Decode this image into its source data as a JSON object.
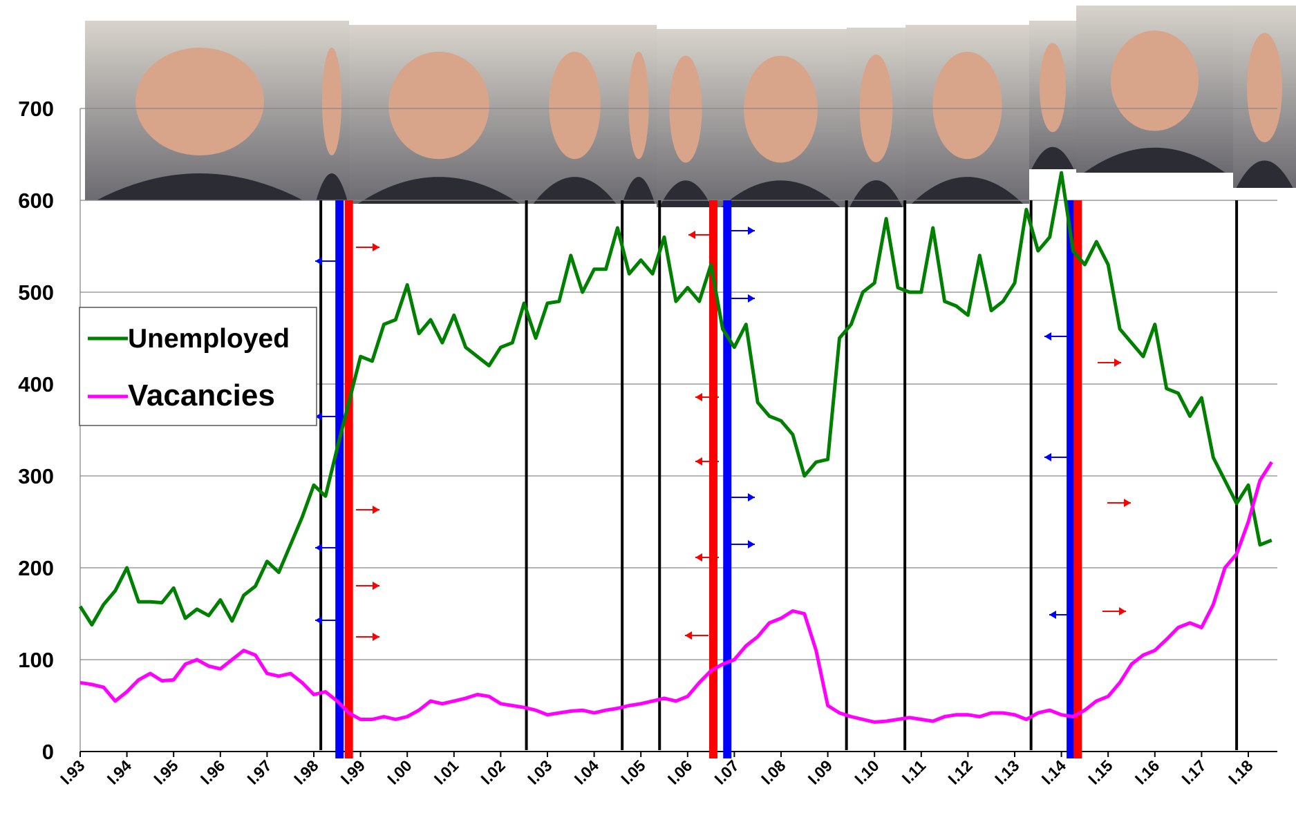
{
  "chart_data": {
    "type": "line",
    "categories": [
      "I.93",
      null,
      null,
      null,
      "I.94",
      null,
      null,
      null,
      "I.95",
      null,
      null,
      null,
      "I.96",
      null,
      null,
      null,
      "I.97",
      null,
      null,
      null,
      "I.98",
      null,
      null,
      null,
      "I.99",
      null,
      null,
      null,
      "I.00",
      null,
      null,
      null,
      "I.01",
      null,
      null,
      null,
      "I.02",
      null,
      null,
      null,
      "I.03",
      null,
      null,
      null,
      "I.04",
      null,
      null,
      null,
      "I.05",
      null,
      null,
      null,
      "I.06",
      null,
      null,
      null,
      "I.07",
      null,
      null,
      null,
      "I.08",
      null,
      null,
      null,
      "I.09",
      null,
      null,
      null,
      "I.10",
      null,
      null,
      null,
      "I.11",
      null,
      null,
      null,
      "I.12",
      null,
      null,
      null,
      "I.13",
      null,
      null,
      null,
      "I.14",
      null,
      null,
      null,
      "I.15",
      null,
      null,
      null,
      "I.16",
      null,
      null,
      null,
      "I.17",
      null,
      null,
      null,
      "I.18",
      null,
      null
    ],
    "series": [
      {
        "name": "Unemployed",
        "color": "#008000",
        "values": [
          158,
          138,
          160,
          175,
          200,
          163,
          163,
          162,
          178,
          145,
          155,
          148,
          165,
          142,
          170,
          180,
          207,
          195,
          225,
          255,
          290,
          278,
          330,
          380,
          430,
          425,
          465,
          470,
          508,
          455,
          470,
          445,
          475,
          440,
          430,
          420,
          440,
          445,
          488,
          450,
          488,
          490,
          540,
          500,
          525,
          525,
          570,
          520,
          535,
          520,
          560,
          490,
          505,
          490,
          530,
          460,
          440,
          465,
          380,
          365,
          360,
          345,
          300,
          315,
          318,
          450,
          465,
          500,
          510,
          580,
          505,
          500,
          500,
          570,
          490,
          485,
          475,
          540,
          480,
          490,
          510,
          590,
          545,
          560,
          630,
          545,
          530,
          555,
          530,
          460,
          445,
          430,
          465,
          395,
          390,
          365,
          385,
          320,
          295,
          270,
          290,
          225,
          230
        ]
      },
      {
        "name": "Vacancies",
        "color": "#ff00ff",
        "values": [
          75,
          73,
          70,
          55,
          65,
          78,
          85,
          77,
          78,
          95,
          100,
          93,
          90,
          100,
          110,
          105,
          85,
          82,
          85,
          75,
          62,
          65,
          55,
          42,
          35,
          35,
          38,
          35,
          38,
          45,
          55,
          52,
          55,
          58,
          62,
          60,
          52,
          50,
          48,
          45,
          40,
          42,
          44,
          45,
          42,
          45,
          47,
          50,
          52,
          55,
          58,
          55,
          60,
          75,
          88,
          95,
          100,
          115,
          125,
          140,
          145,
          153,
          150,
          110,
          50,
          42,
          38,
          35,
          32,
          33,
          35,
          37,
          35,
          33,
          38,
          40,
          40,
          38,
          42,
          42,
          40,
          35,
          42,
          45,
          40,
          38,
          45,
          55,
          60,
          75,
          95,
          105,
          110,
          122,
          135,
          140,
          135,
          160,
          200,
          215,
          250,
          295,
          315
        ]
      }
    ],
    "ylim": [
      0,
      700
    ],
    "yticks": [
      0,
      100,
      200,
      300,
      400,
      500,
      600,
      700
    ],
    "grid": true,
    "legend": "left",
    "vlines": [
      {
        "at": 20.6,
        "color": "#000000"
      },
      {
        "at": 22.2,
        "color": "#0000ff"
      },
      {
        "at": 23.0,
        "color": "#ff0000"
      },
      {
        "at": 38.2,
        "color": "#000000"
      },
      {
        "at": 46.4,
        "color": "#000000"
      },
      {
        "at": 49.6,
        "color": "#000000"
      },
      {
        "at": 54.2,
        "color": "#ff0000"
      },
      {
        "at": 55.4,
        "color": "#0000ff"
      },
      {
        "at": 65.6,
        "color": "#000000"
      },
      {
        "at": 70.6,
        "color": "#000000"
      },
      {
        "at": 81.4,
        "color": "#000000"
      },
      {
        "at": 84.8,
        "color": "#0000ff"
      },
      {
        "at": 85.4,
        "color": "#ff0000"
      },
      {
        "at": 99.0,
        "color": "#000000"
      }
    ]
  }
}
